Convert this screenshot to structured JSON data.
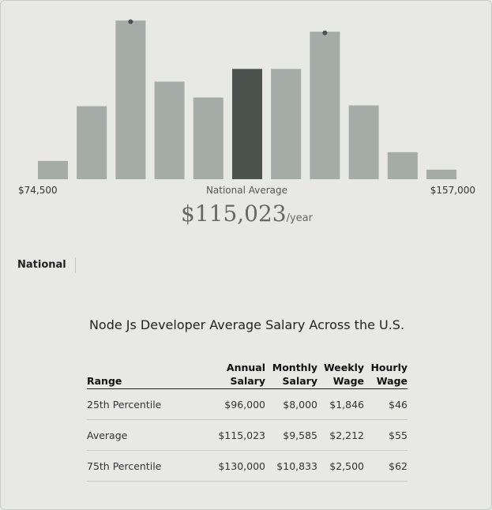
{
  "chart_data": {
    "type": "bar",
    "values": [
      23,
      92,
      200,
      123,
      103,
      139,
      139,
      186,
      93,
      34,
      12
    ],
    "highlight_index": 5,
    "peak_markers": [
      2,
      7
    ],
    "colors": {
      "bar": "#a5aba6",
      "highlight": "#4c524d",
      "marker": "#4c524d"
    },
    "range_min_label": "$74,500",
    "range_max_label": "$157,000",
    "average_caption": "National Average",
    "average_value": "$115,023",
    "average_unit": "/year"
  },
  "location_tab": "National",
  "table": {
    "title": "Node Js Developer Average Salary Across the U.S.",
    "headers": {
      "range": "Range",
      "annual_1": "Annual",
      "annual_2": "Salary",
      "monthly_1": "Monthly",
      "monthly_2": "Salary",
      "weekly_1": "Weekly",
      "weekly_2": "Wage",
      "hourly_1": "Hourly",
      "hourly_2": "Wage"
    },
    "rows": [
      {
        "range": "25th Percentile",
        "annual": "$96,000",
        "monthly": "$8,000",
        "weekly": "$1,846",
        "hourly": "$46"
      },
      {
        "range": "Average",
        "annual": "$115,023",
        "monthly": "$9,585",
        "weekly": "$2,212",
        "hourly": "$55"
      },
      {
        "range": "75th Percentile",
        "annual": "$130,000",
        "monthly": "$10,833",
        "weekly": "$2,500",
        "hourly": "$62"
      }
    ]
  }
}
